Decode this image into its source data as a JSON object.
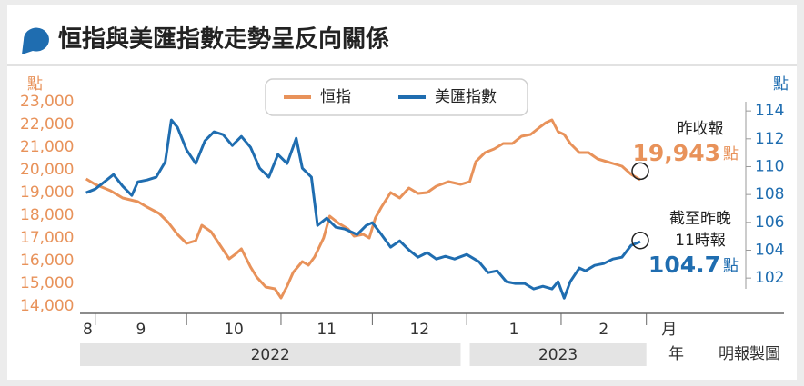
{
  "chart_data": {
    "type": "line",
    "title": "恒指與美匯指數走勢呈反向關係",
    "credit": "明報製圖",
    "yunit": "點",
    "y2unit": "點",
    "xunit": "月",
    "yearunit": "年",
    "xlim": [
      -5,
      225
    ],
    "xticks": [
      {
        "value": -31,
        "label": "8"
      },
      {
        "value": 0,
        "label": "9"
      },
      {
        "value": 30,
        "label": "10"
      },
      {
        "value": 61,
        "label": "11"
      },
      {
        "value": 91,
        "label": "12"
      },
      {
        "value": 122,
        "label": "1"
      },
      {
        "value": 153,
        "label": "2"
      },
      {
        "value": 181,
        "label": "月"
      }
    ],
    "years": [
      {
        "label": "2022",
        "start": -5,
        "end": 120
      },
      {
        "label": "2023",
        "start": 123,
        "end": 181
      }
    ],
    "ylim": [
      13700,
      23300
    ],
    "yticks": [
      {
        "value": 14000,
        "label": "14,000"
      },
      {
        "value": 15000,
        "label": "15,000"
      },
      {
        "value": 16000,
        "label": "16,000"
      },
      {
        "value": 17000,
        "label": "17,000"
      },
      {
        "value": 18000,
        "label": "18,000"
      },
      {
        "value": 19000,
        "label": "19,000"
      },
      {
        "value": 20000,
        "label": "20,000"
      },
      {
        "value": 21000,
        "label": "21,000"
      },
      {
        "value": 22000,
        "label": "22,000"
      },
      {
        "value": 23000,
        "label": "23,000"
      }
    ],
    "y2lim": [
      99.5,
      115.15
    ],
    "y2ticks": [
      102,
      104,
      106,
      108,
      110,
      112,
      114
    ],
    "series": [
      {
        "name": "恒指",
        "color": "#e8925a",
        "x": [
          -3,
          0,
          5,
          9,
          14,
          17,
          21,
          24,
          27,
          30,
          33,
          35,
          38,
          41,
          44,
          46,
          48,
          51,
          53,
          56,
          59,
          61,
          63,
          65,
          68,
          70,
          72,
          75,
          77,
          80,
          83,
          85,
          88,
          90,
          92,
          94,
          97,
          100,
          103,
          106,
          109,
          112,
          116,
          120,
          123,
          125,
          128,
          131,
          134,
          137,
          140,
          143,
          146,
          148,
          150,
          152,
          154,
          156,
          159,
          162,
          165,
          168,
          170,
          173,
          176,
          179
        ],
        "values": [
          19600,
          19360,
          19080,
          18760,
          18600,
          18360,
          18080,
          17680,
          17160,
          16760,
          16880,
          17560,
          17280,
          16680,
          16080,
          16280,
          16520,
          15720,
          15280,
          14840,
          14760,
          14360,
          14880,
          15480,
          15960,
          15800,
          16160,
          17000,
          17960,
          17640,
          17400,
          17080,
          17160,
          17000,
          17880,
          18360,
          19000,
          18760,
          19200,
          18960,
          19000,
          19280,
          19480,
          19360,
          19480,
          20360,
          20760,
          20920,
          21160,
          21160,
          21480,
          21560,
          21880,
          22080,
          22200,
          21680,
          21560,
          21160,
          20760,
          20760,
          20480,
          20360,
          20280,
          20160,
          19800,
          19560
        ]
      },
      {
        "name": "美匯指數",
        "color": "#1f6db0",
        "axis": "y2",
        "x": [
          -3,
          0,
          3,
          6,
          9,
          12,
          14,
          17,
          20,
          23,
          25,
          27,
          30,
          33,
          36,
          39,
          42,
          45,
          48,
          51,
          54,
          57,
          60,
          63,
          66,
          68,
          71,
          73,
          76,
          79,
          82,
          86,
          89,
          91,
          94,
          97,
          100,
          103,
          106,
          109,
          112,
          115,
          118,
          122,
          126,
          129,
          132,
          135,
          138,
          141,
          144,
          147,
          150,
          152,
          154,
          156,
          159,
          161,
          164,
          167,
          170,
          173,
          176,
          179
        ],
        "values": [
          108.13,
          108.39,
          108.91,
          109.43,
          108.59,
          107.93,
          108.91,
          109.04,
          109.24,
          110.35,
          113.35,
          112.83,
          111.19,
          110.22,
          111.85,
          112.5,
          112.3,
          111.52,
          112.17,
          111.39,
          109.89,
          109.24,
          110.87,
          110.22,
          112.04,
          109.89,
          109.24,
          105.78,
          106.3,
          105.65,
          105.52,
          105.13,
          105.78,
          105.98,
          105.13,
          104.22,
          104.67,
          104.02,
          103.5,
          103.83,
          103.37,
          103.56,
          103.37,
          103.69,
          103.17,
          102.39,
          102.52,
          101.74,
          101.61,
          101.61,
          101.22,
          101.41,
          101.22,
          101.74,
          100.56,
          101.74,
          102.72,
          102.52,
          102.91,
          103.04,
          103.37,
          103.5,
          104.35,
          104.61
        ]
      }
    ],
    "annotations": [
      {
        "caption": [
          "昨收報"
        ],
        "value": 19943,
        "label": "19,943",
        "unit": "點",
        "series": 0
      },
      {
        "caption": [
          "截至昨晚",
          "11時報"
        ],
        "value": 104.7,
        "label": "104.7",
        "unit": "點",
        "series": 1
      }
    ]
  }
}
